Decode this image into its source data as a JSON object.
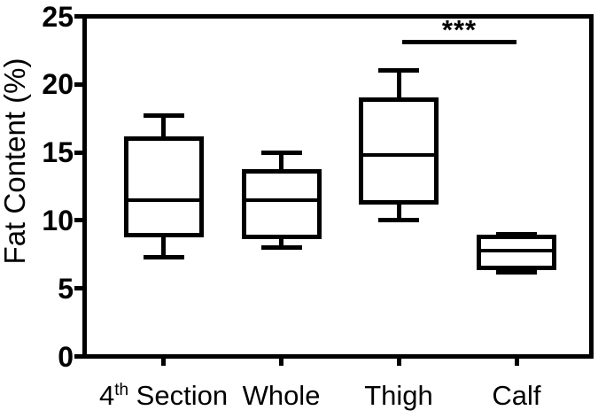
{
  "chart_data": {
    "type": "box",
    "title": "",
    "ylabel": "Fat Content (%)",
    "xlabel": "",
    "ylim": [
      0,
      25
    ],
    "yticks": [
      0,
      5,
      10,
      15,
      20,
      25
    ],
    "grid": false,
    "legend": "none",
    "colors": {
      "line": "#000000",
      "background": "#ffffff"
    },
    "categories": [
      {
        "label": "4th Section",
        "parts": [
          {
            "t": "4"
          },
          {
            "t": "th",
            "sup": true
          },
          {
            "t": " Section"
          }
        ]
      },
      {
        "label": "Whole",
        "parts": [
          {
            "t": "Whole"
          }
        ]
      },
      {
        "label": "Thigh",
        "parts": [
          {
            "t": "Thigh"
          }
        ]
      },
      {
        "label": "Calf",
        "parts": [
          {
            "t": "Calf"
          }
        ]
      }
    ],
    "series": [
      {
        "category": "4th Section",
        "min": 7.3,
        "q1": 8.9,
        "median": 11.5,
        "q3": 16.0,
        "max": 17.7
      },
      {
        "category": "Whole",
        "min": 8.0,
        "q1": 8.8,
        "median": 11.5,
        "q3": 13.6,
        "max": 15.0
      },
      {
        "category": "Thigh",
        "min": 10.0,
        "q1": 11.3,
        "median": 14.8,
        "q3": 18.9,
        "max": 21.0
      },
      {
        "category": "Calf",
        "min": 6.2,
        "q1": 6.5,
        "median": 7.8,
        "q3": 8.8,
        "max": 9.0
      }
    ],
    "annotation": {
      "text": "***",
      "from": "Thigh",
      "to": "Calf",
      "y_value": 23.1
    }
  }
}
